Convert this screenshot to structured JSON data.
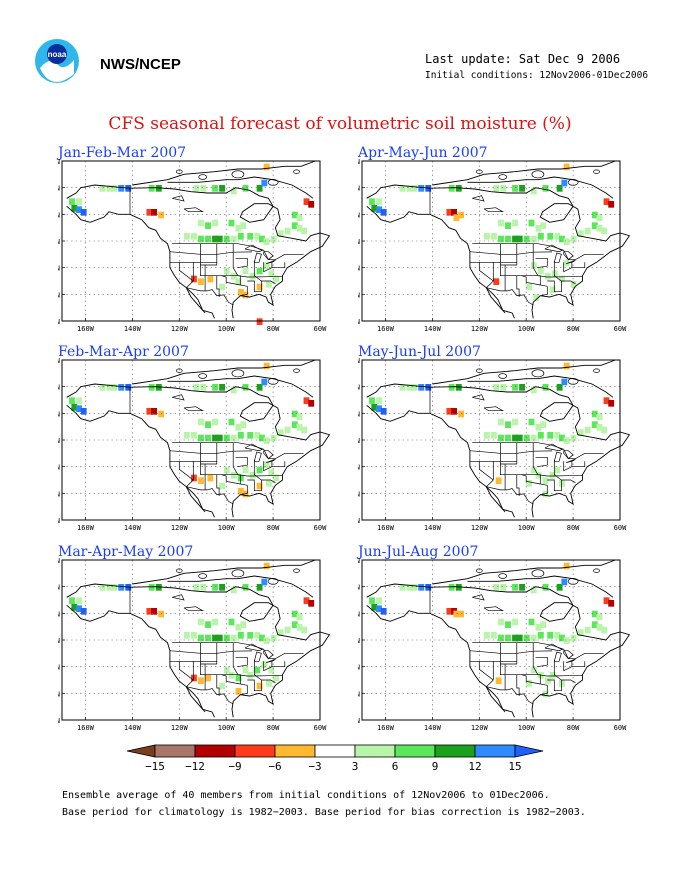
{
  "header": {
    "agency": "NWS/NCEP",
    "last_update": "Last update: Sat Dec 9 2006",
    "initial_conditions": "Initial conditions: 12Nov2006-01Dec2006"
  },
  "main_title": "CFS seasonal forecast of volumetric soil moisture (%)",
  "panels": [
    {
      "title": "Jan-Feb-Mar 2007"
    },
    {
      "title": "Apr-May-Jun 2007"
    },
    {
      "title": "Feb-Mar-Apr 2007"
    },
    {
      "title": "May-Jun-Jul 2007"
    },
    {
      "title": "Mar-Apr-May 2007"
    },
    {
      "title": "Jun-Jul-Aug 2007"
    }
  ],
  "map_axes": {
    "lat_labels": [
      "80N",
      "70N",
      "60N",
      "50N",
      "40N",
      "30N",
      "20N"
    ],
    "lon_labels": [
      "160W",
      "140W",
      "120W",
      "100W",
      "80W",
      "60W"
    ]
  },
  "colorbar": {
    "labels": [
      "−15",
      "−12",
      "−9",
      "−6",
      "−3",
      "3",
      "6",
      "9",
      "12",
      "15"
    ],
    "colors": [
      "#7a3e1e",
      "#a9776a",
      "#b30000",
      "#ff3a1a",
      "#ffb830",
      "#ffffff",
      "#b8f5a8",
      "#5ae85a",
      "#1aa31a",
      "#2e8bff",
      "#1f5fff"
    ]
  },
  "footer": {
    "line1": "Ensemble average of 40 members from initial conditions of 12Nov2006 to 01Dec2006.",
    "line2": "Base period for climatology is 1982−2003. Base period for bias correction is 1982−2003."
  }
}
